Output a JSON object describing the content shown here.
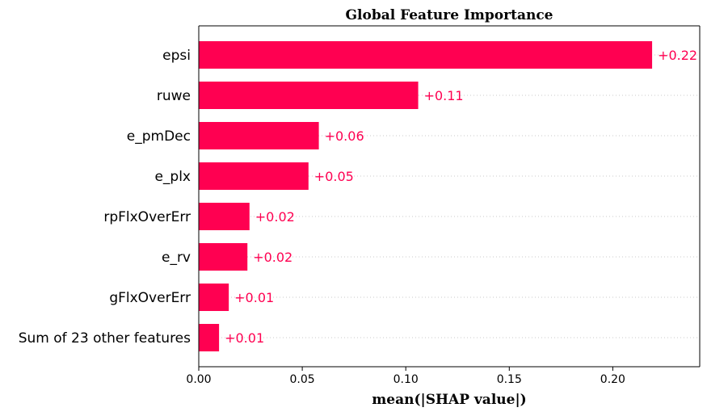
{
  "chart_data": {
    "type": "bar",
    "orientation": "horizontal",
    "title": "Global Feature Importance",
    "xlabel": "mean(|SHAP value|)",
    "ylabel": "",
    "categories": [
      "epsi",
      "ruwe",
      "e_pmDec",
      "e_plx",
      "rpFlxOverErr",
      "e_rv",
      "gFlxOverErr",
      "Sum of 23 other features"
    ],
    "values": [
      0.219,
      0.106,
      0.058,
      0.053,
      0.0245,
      0.0235,
      0.0145,
      0.0098
    ],
    "value_labels": [
      "+0.22",
      "+0.11",
      "+0.06",
      "+0.05",
      "+0.02",
      "+0.02",
      "+0.01",
      "+0.01"
    ],
    "xlim": [
      0,
      0.242
    ],
    "xticks": [
      0.0,
      0.05,
      0.1,
      0.15,
      0.2
    ],
    "xtick_labels": [
      "0.00",
      "0.05",
      "0.10",
      "0.15",
      "0.20"
    ],
    "grid": "horizontal dotted lines at each bar",
    "legend": "none",
    "bar_color": "#ff0051",
    "value_label_color": "#ff0051"
  }
}
